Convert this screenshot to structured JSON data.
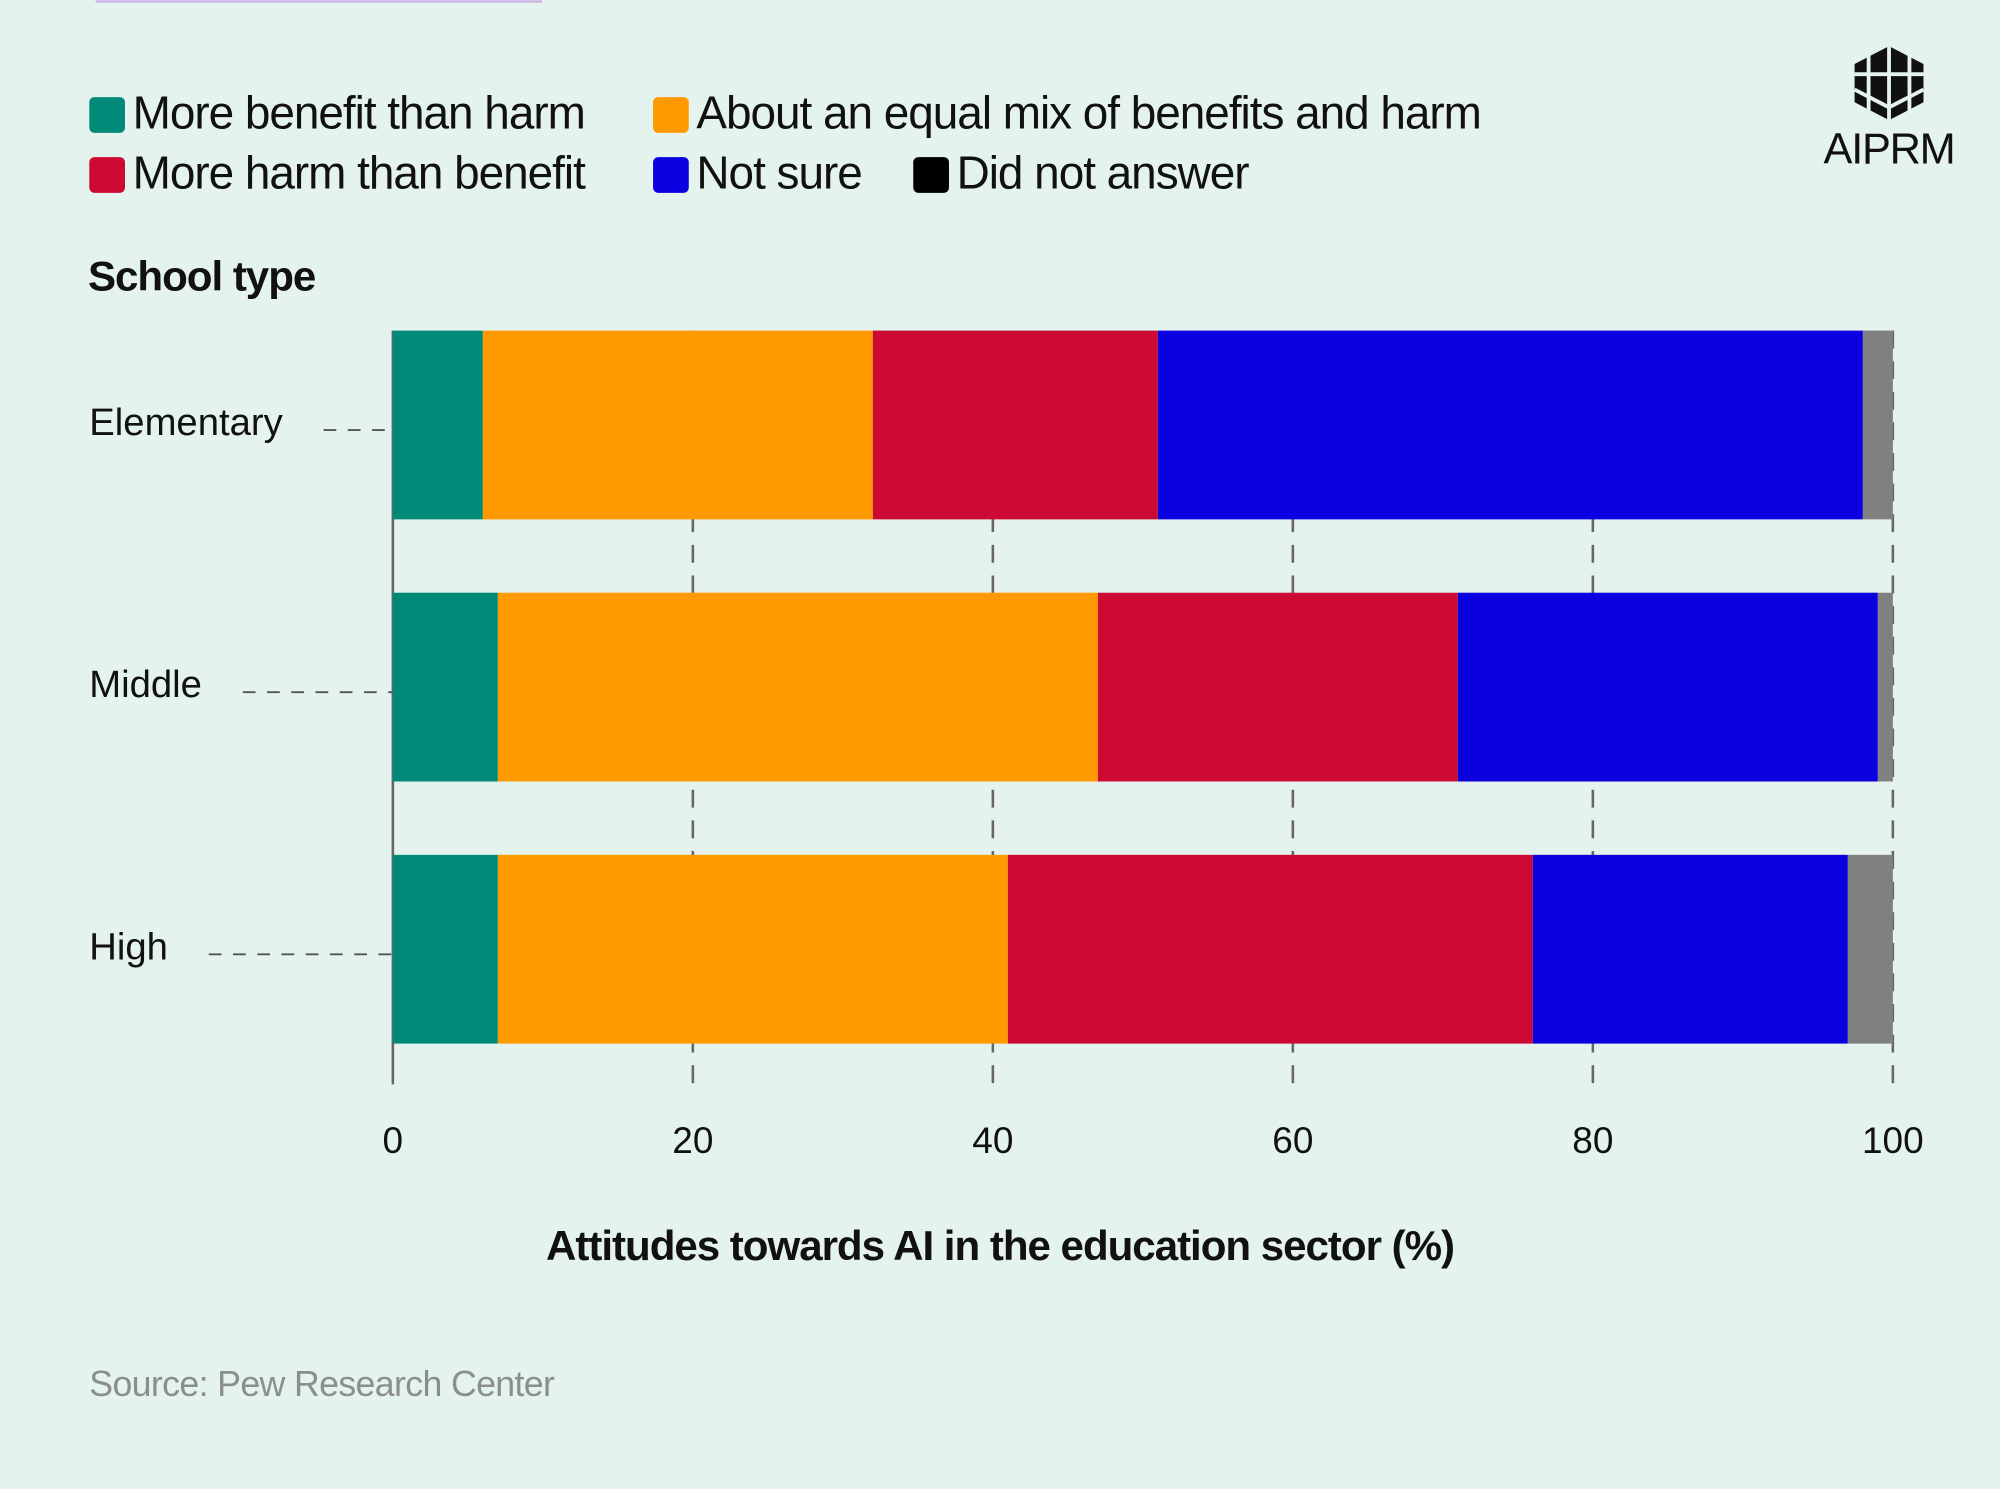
{
  "brand": "AIPRM",
  "chart_data": {
    "type": "stacked-barh",
    "y_label": "School type",
    "x_label": "Attitudes towards AI in the education sector (%)",
    "source": "Source: Pew Research Center",
    "categories": [
      "Elementary",
      "Middle",
      "High"
    ],
    "series": [
      {
        "name": "More benefit than harm",
        "color": "#008a77",
        "values": [
          6,
          7,
          7
        ]
      },
      {
        "name": "About an equal mix of benefits and harm",
        "color": "#ff9900",
        "values": [
          26,
          40,
          34
        ]
      },
      {
        "name": "More harm than benefit",
        "color": "#cc0a33",
        "values": [
          19,
          24,
          35
        ]
      },
      {
        "name": "Not sure",
        "color": "#0a00e0",
        "values": [
          47,
          28,
          21
        ]
      },
      {
        "name": "Did not answer",
        "color": "#808080",
        "legend_color": "#000000",
        "values": [
          2,
          1,
          3
        ]
      }
    ],
    "xlim": [
      0,
      100
    ],
    "xticks": [
      0,
      20,
      40,
      60,
      80,
      100
    ],
    "grid": true
  }
}
